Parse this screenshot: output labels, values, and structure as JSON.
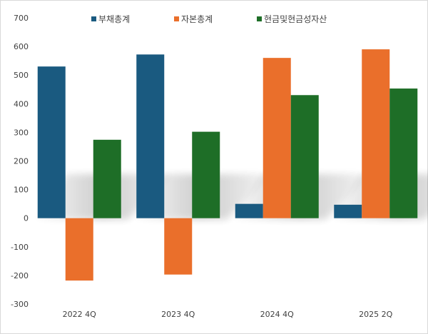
{
  "chart_data": {
    "type": "bar",
    "categories": [
      "2022 4Q",
      "2023 4Q",
      "2024 4Q",
      "2025 2Q"
    ],
    "series": [
      {
        "name": "부채총계",
        "color": "#1a5a80",
        "values": [
          530,
          572,
          50,
          47
        ]
      },
      {
        "name": "자본총계",
        "color": "#ea6f2b",
        "values": [
          -218,
          -197,
          560,
          590
        ]
      },
      {
        "name": "현금및현금성자산",
        "color": "#1e6e27",
        "values": [
          274,
          302,
          430,
          453
        ]
      }
    ],
    "ylim": [
      -300,
      700
    ],
    "yticks": [
      700,
      600,
      500,
      400,
      300,
      200,
      100,
      0,
      -100,
      -200,
      -300
    ],
    "grid": false,
    "legend_position": "top"
  }
}
